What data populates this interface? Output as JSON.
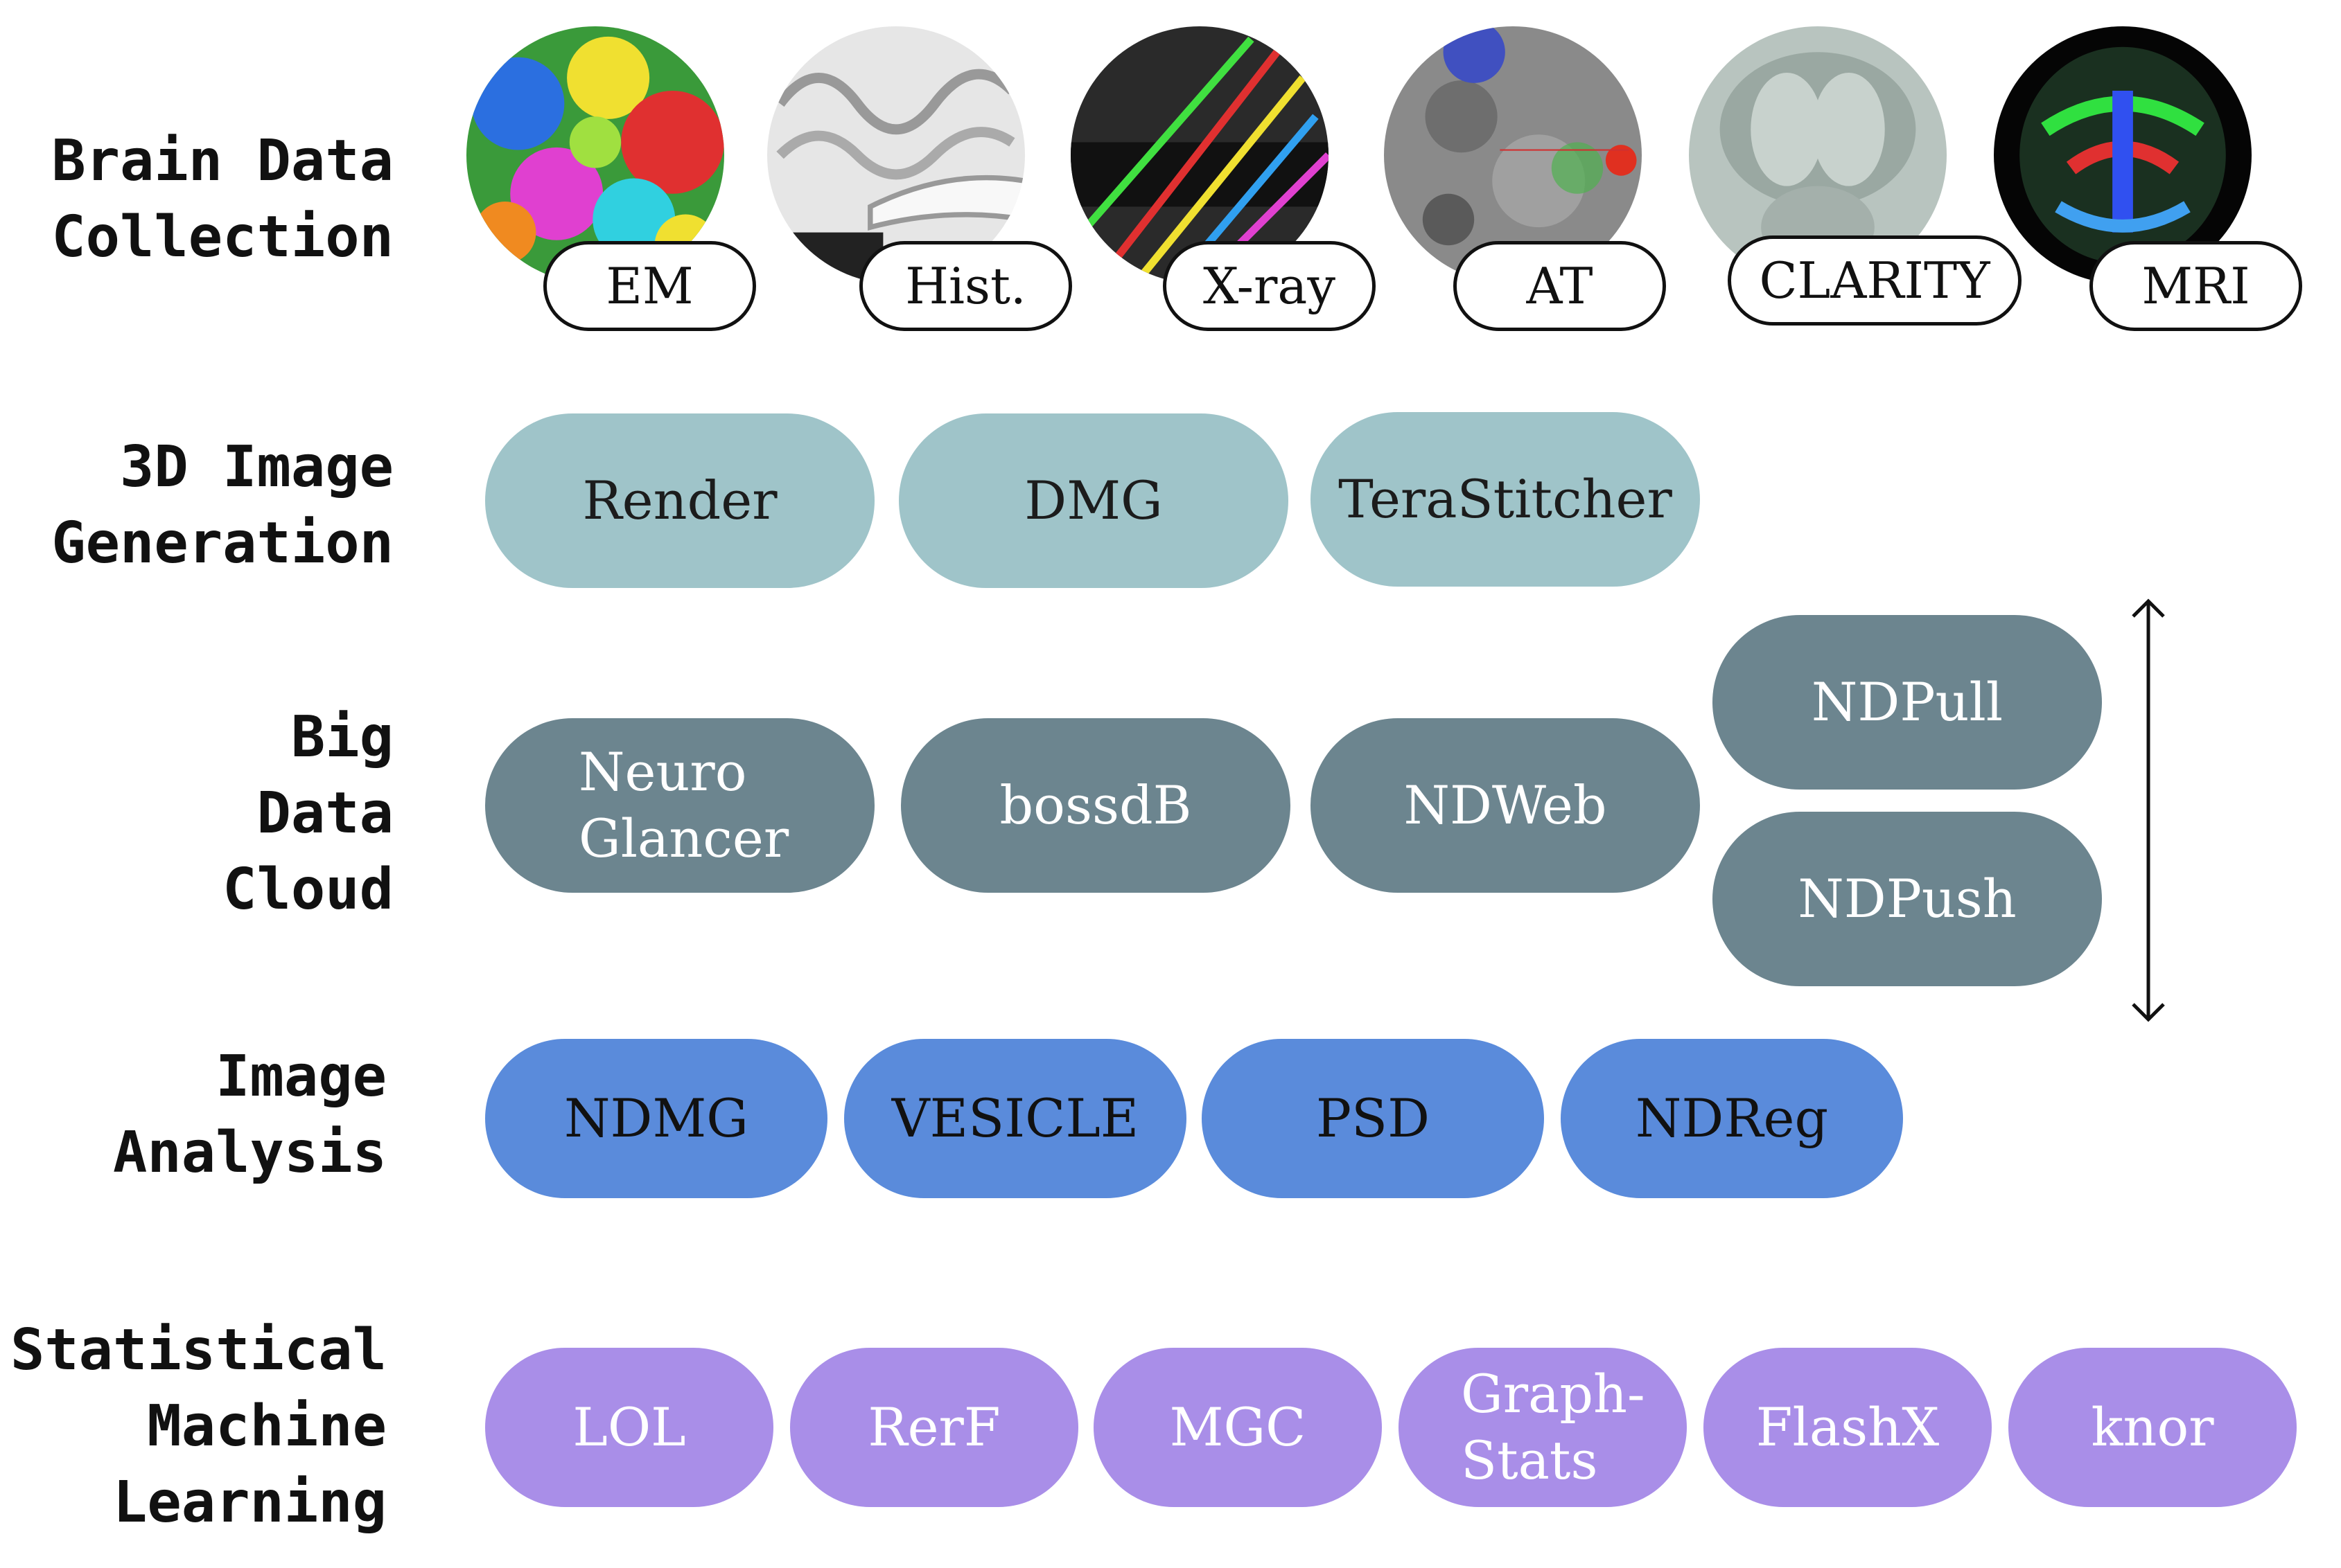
{
  "rows": {
    "collection": {
      "label": "Brain Data\nCollection"
    },
    "generation": {
      "label": "3D Image\nGeneration"
    },
    "cloud": {
      "label": "Big\nData\nCloud"
    },
    "analysis": {
      "label": "Image\nAnalysis"
    },
    "learning": {
      "label": "Statistical\nMachine\nLearning"
    }
  },
  "modalities": [
    {
      "label": "EM",
      "icon": "em-segmentation-image"
    },
    {
      "label": "Hist.",
      "icon": "histology-slice-image"
    },
    {
      "label": "X-ray",
      "icon": "xray-fibers-image"
    },
    {
      "label": "AT",
      "icon": "array-tomography-image"
    },
    {
      "label": "CLARITY",
      "icon": "clarity-brain-image"
    },
    {
      "label": "MRI",
      "icon": "mri-tractography-image"
    }
  ],
  "generation_tools": [
    "Render",
    "DMG",
    "TeraStitcher"
  ],
  "cloud_tools": [
    "Neuro\nGlancer",
    "bossdB",
    "NDWeb",
    "NDPull",
    "NDPush"
  ],
  "analysis_tools": [
    "NDMG",
    "VESICLE",
    "PSD",
    "NDReg"
  ],
  "learning_tools": [
    "LOL",
    "RerF",
    "MGC",
    "Graph-\nStats",
    "FlashX",
    "knor"
  ],
  "colors": {
    "generation": "#9fc4c9",
    "cloud": "#6c858f",
    "analysis": "#5a8bdb",
    "learning": "#a98ee8"
  },
  "arrow_icon": "double-headed-vertical-arrow"
}
